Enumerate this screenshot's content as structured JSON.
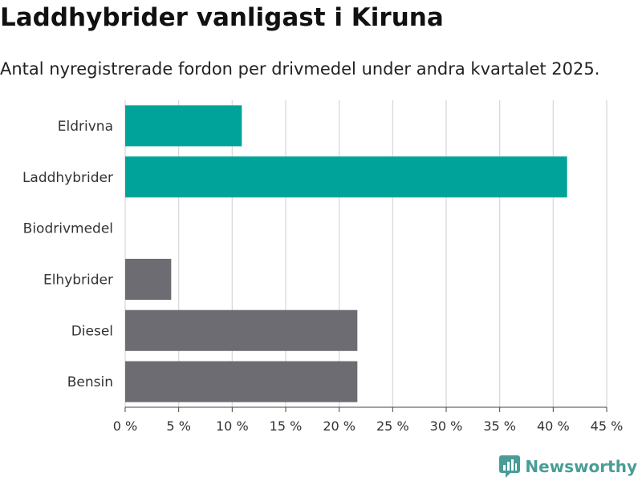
{
  "title": "Laddhybrider vanligast i Kiruna",
  "subtitle": "Antal nyregistrerade fordon per drivmedel under andra kvartalet 2025.",
  "brand": {
    "name": "Newsworthy",
    "icon": "newsworthy-logo-icon",
    "color": "#4a9d96"
  },
  "chart_data": {
    "type": "bar",
    "orientation": "horizontal",
    "categories": [
      "Eldrivna",
      "Laddhybrider",
      "Biodrivmedel",
      "Elhybrider",
      "Diesel",
      "Bensin"
    ],
    "values": [
      10.9,
      41.3,
      0,
      4.3,
      21.7,
      21.7
    ],
    "colors": [
      "#00a39a",
      "#00a39a",
      "#00a39a",
      "#6d6c72",
      "#6d6c72",
      "#6d6c72"
    ],
    "xlim": [
      0,
      45
    ],
    "xticks": [
      0,
      5,
      10,
      15,
      20,
      25,
      30,
      35,
      40,
      45
    ],
    "tick_labels": [
      "0 %",
      "5 %",
      "10 %",
      "15 %",
      "20 %",
      "25 %",
      "30 %",
      "35 %",
      "40 %",
      "45 %"
    ],
    "grid": true,
    "gridColor": "#d9d9d9"
  }
}
